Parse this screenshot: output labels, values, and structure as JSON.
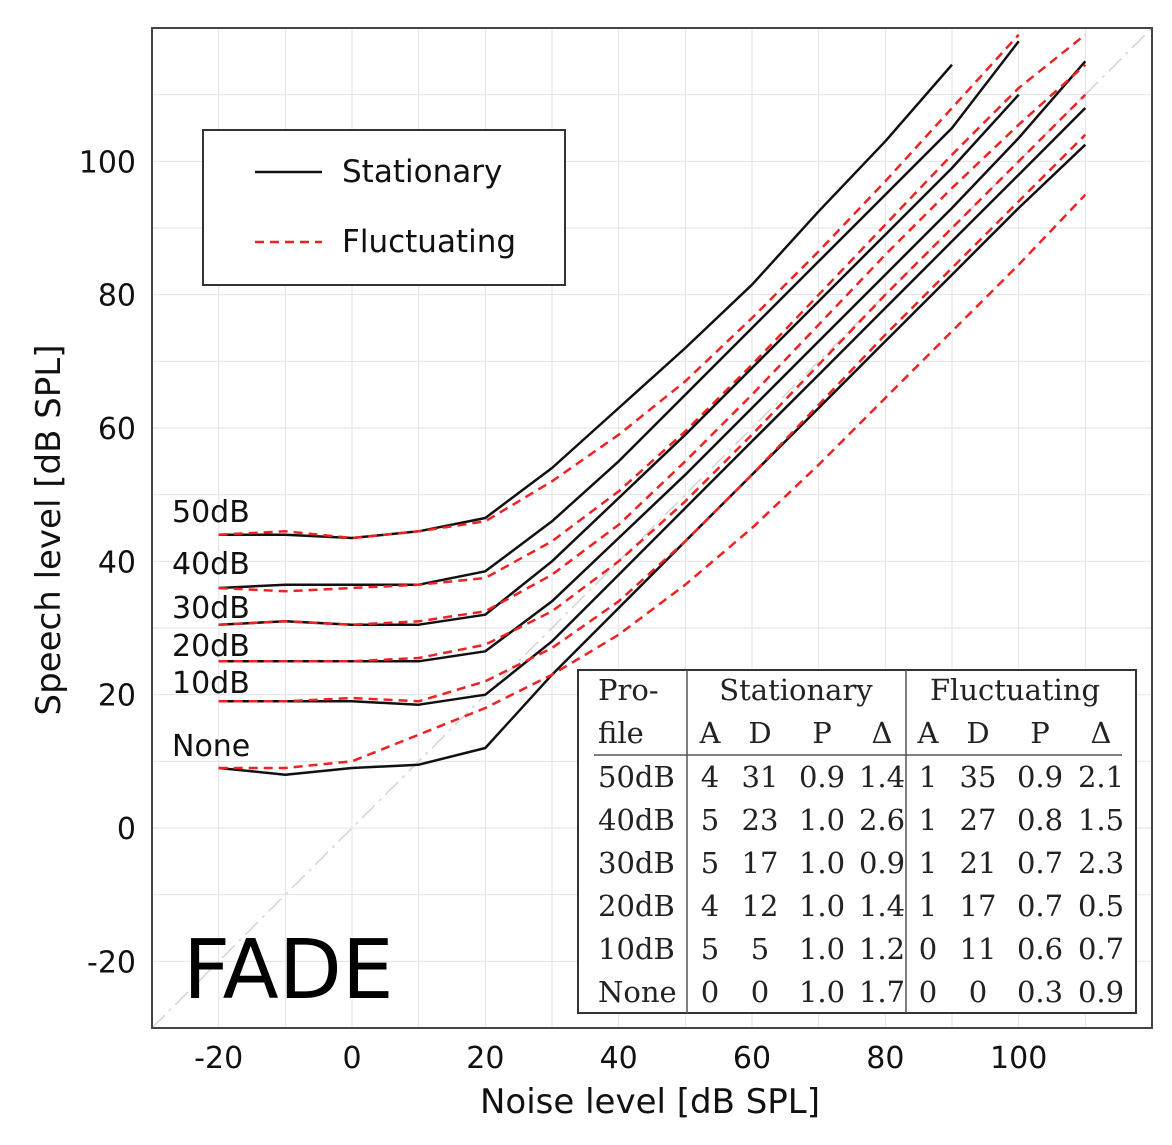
{
  "chart_data": {
    "type": "line",
    "xlabel": "Noise level [dB SPL]",
    "ylabel": "Speech level [dB SPL]",
    "xlim": [
      -30,
      120
    ],
    "ylim": [
      -30,
      120
    ],
    "xticks": [
      -20,
      0,
      20,
      40,
      60,
      80,
      100
    ],
    "yticks": [
      -20,
      0,
      20,
      40,
      60,
      80,
      100
    ],
    "grid": true,
    "diagonal_reference": true,
    "legend": {
      "placement": "top-left",
      "entries": [
        {
          "name": "Stationary",
          "style": "solid",
          "color": "#111111"
        },
        {
          "name": "Fluctuating",
          "style": "dashed",
          "color": "#ee2222"
        }
      ]
    },
    "annotation": "FADE",
    "profiles": [
      "50dB",
      "40dB",
      "30dB",
      "20dB",
      "10dB",
      "None"
    ],
    "series": [
      {
        "profile": "50dB",
        "type": "Stationary",
        "x": [
          -20,
          -10,
          0,
          10,
          20,
          30,
          40,
          50,
          60,
          70,
          80,
          90
        ],
        "y": [
          44,
          44,
          43.5,
          44.5,
          46.5,
          54,
          63,
          72,
          81.5,
          92.5,
          103,
          114.5
        ]
      },
      {
        "profile": "40dB",
        "type": "Stationary",
        "x": [
          -20,
          -10,
          0,
          10,
          20,
          30,
          40,
          50,
          60,
          70,
          80,
          90,
          100
        ],
        "y": [
          36,
          36.5,
          36.5,
          36.5,
          38.5,
          46,
          55,
          65,
          75,
          85,
          95,
          105,
          118
        ]
      },
      {
        "profile": "30dB",
        "type": "Stationary",
        "x": [
          -20,
          -10,
          0,
          10,
          20,
          30,
          40,
          50,
          60,
          70,
          80,
          90,
          100
        ],
        "y": [
          30.5,
          31,
          30.5,
          30.5,
          32,
          40,
          49.5,
          59,
          69,
          79,
          89,
          99,
          110
        ]
      },
      {
        "profile": "20dB",
        "type": "Stationary",
        "x": [
          -20,
          -10,
          0,
          10,
          20,
          30,
          40,
          50,
          60,
          70,
          80,
          90,
          100,
          110
        ],
        "y": [
          25,
          25,
          25,
          25,
          26.5,
          34,
          43.5,
          53,
          63,
          73,
          83,
          93,
          103.5,
          115
        ]
      },
      {
        "profile": "10dB",
        "type": "Stationary",
        "x": [
          -20,
          -10,
          0,
          10,
          20,
          30,
          40,
          50,
          60,
          70,
          80,
          90,
          100,
          110
        ],
        "y": [
          19,
          19,
          19,
          18.5,
          20,
          28,
          38,
          48,
          58,
          68,
          78,
          88,
          98,
          108
        ]
      },
      {
        "profile": "None",
        "type": "Stationary",
        "x": [
          -20,
          -10,
          0,
          10,
          20,
          30,
          40,
          50,
          60,
          70,
          80,
          90,
          100,
          110
        ],
        "y": [
          9,
          8,
          9,
          9.5,
          12,
          23,
          33,
          43,
          53,
          63,
          73,
          83,
          93,
          102.5
        ]
      },
      {
        "profile": "50dB",
        "type": "Fluctuating",
        "x": [
          -20,
          -10,
          0,
          10,
          20,
          30,
          40,
          50,
          60,
          70,
          80,
          90,
          100
        ],
        "y": [
          44,
          44.5,
          43.5,
          44.5,
          46,
          52,
          59,
          67,
          76.5,
          86.5,
          97,
          108,
          119
        ]
      },
      {
        "profile": "40dB",
        "type": "Fluctuating",
        "x": [
          -20,
          -10,
          0,
          10,
          20,
          30,
          40,
          50,
          60,
          70,
          80,
          90,
          100,
          110
        ],
        "y": [
          36,
          35.5,
          36,
          36.5,
          37.5,
          43,
          50.5,
          59.5,
          69.5,
          80,
          90.5,
          101,
          111,
          119
        ]
      },
      {
        "profile": "30dB",
        "type": "Fluctuating",
        "x": [
          -20,
          -10,
          0,
          10,
          20,
          30,
          40,
          50,
          60,
          70,
          80,
          90,
          100,
          110
        ],
        "y": [
          30.5,
          31,
          30.5,
          31,
          32.5,
          38,
          45.5,
          55,
          65,
          75.5,
          86,
          96,
          105.5,
          114.5
        ]
      },
      {
        "profile": "20dB",
        "type": "Fluctuating",
        "x": [
          -20,
          -10,
          0,
          10,
          20,
          30,
          40,
          50,
          60,
          70,
          80,
          90,
          100,
          110
        ],
        "y": [
          25,
          25,
          25,
          25.5,
          27.5,
          32.5,
          40,
          49,
          59,
          69.5,
          80,
          90,
          100,
          110
        ]
      },
      {
        "profile": "10dB",
        "type": "Fluctuating",
        "x": [
          -20,
          -10,
          0,
          10,
          20,
          30,
          40,
          50,
          60,
          70,
          80,
          90,
          100,
          110
        ],
        "y": [
          19,
          19,
          19.5,
          19,
          22,
          27,
          34,
          43,
          53,
          63.5,
          74,
          84,
          94,
          104
        ]
      },
      {
        "profile": "None",
        "type": "Fluctuating",
        "x": [
          -20,
          -10,
          0,
          10,
          20,
          30,
          40,
          50,
          60,
          70,
          80,
          90,
          100,
          110
        ],
        "y": [
          9,
          9,
          10,
          14,
          18,
          23,
          29,
          36.5,
          45,
          54.5,
          64.5,
          74.5,
          84.5,
          95
        ]
      }
    ],
    "table": {
      "header_groups": [
        "Stationary",
        "Fluctuating"
      ],
      "first_col_header": [
        "Pro-",
        "file"
      ],
      "sub_headers": [
        "A",
        "D",
        "P",
        "Δ",
        "A",
        "D",
        "P",
        "Δ"
      ],
      "rows": [
        [
          "50dB",
          "4",
          "31",
          "0.9",
          "1.4",
          "1",
          "35",
          "0.9",
          "2.1"
        ],
        [
          "40dB",
          "5",
          "23",
          "1.0",
          "2.6",
          "1",
          "27",
          "0.8",
          "1.5"
        ],
        [
          "30dB",
          "5",
          "17",
          "1.0",
          "0.9",
          "1",
          "21",
          "0.7",
          "2.3"
        ],
        [
          "20dB",
          "4",
          "12",
          "1.0",
          "1.4",
          "1",
          "17",
          "0.7",
          "0.5"
        ],
        [
          "10dB",
          "5",
          "5",
          "1.0",
          "1.2",
          "0",
          "11",
          "0.6",
          "0.7"
        ],
        [
          "None",
          "0",
          "0",
          "1.0",
          "1.7",
          "0",
          "0",
          "0.3",
          "0.9"
        ]
      ]
    }
  }
}
